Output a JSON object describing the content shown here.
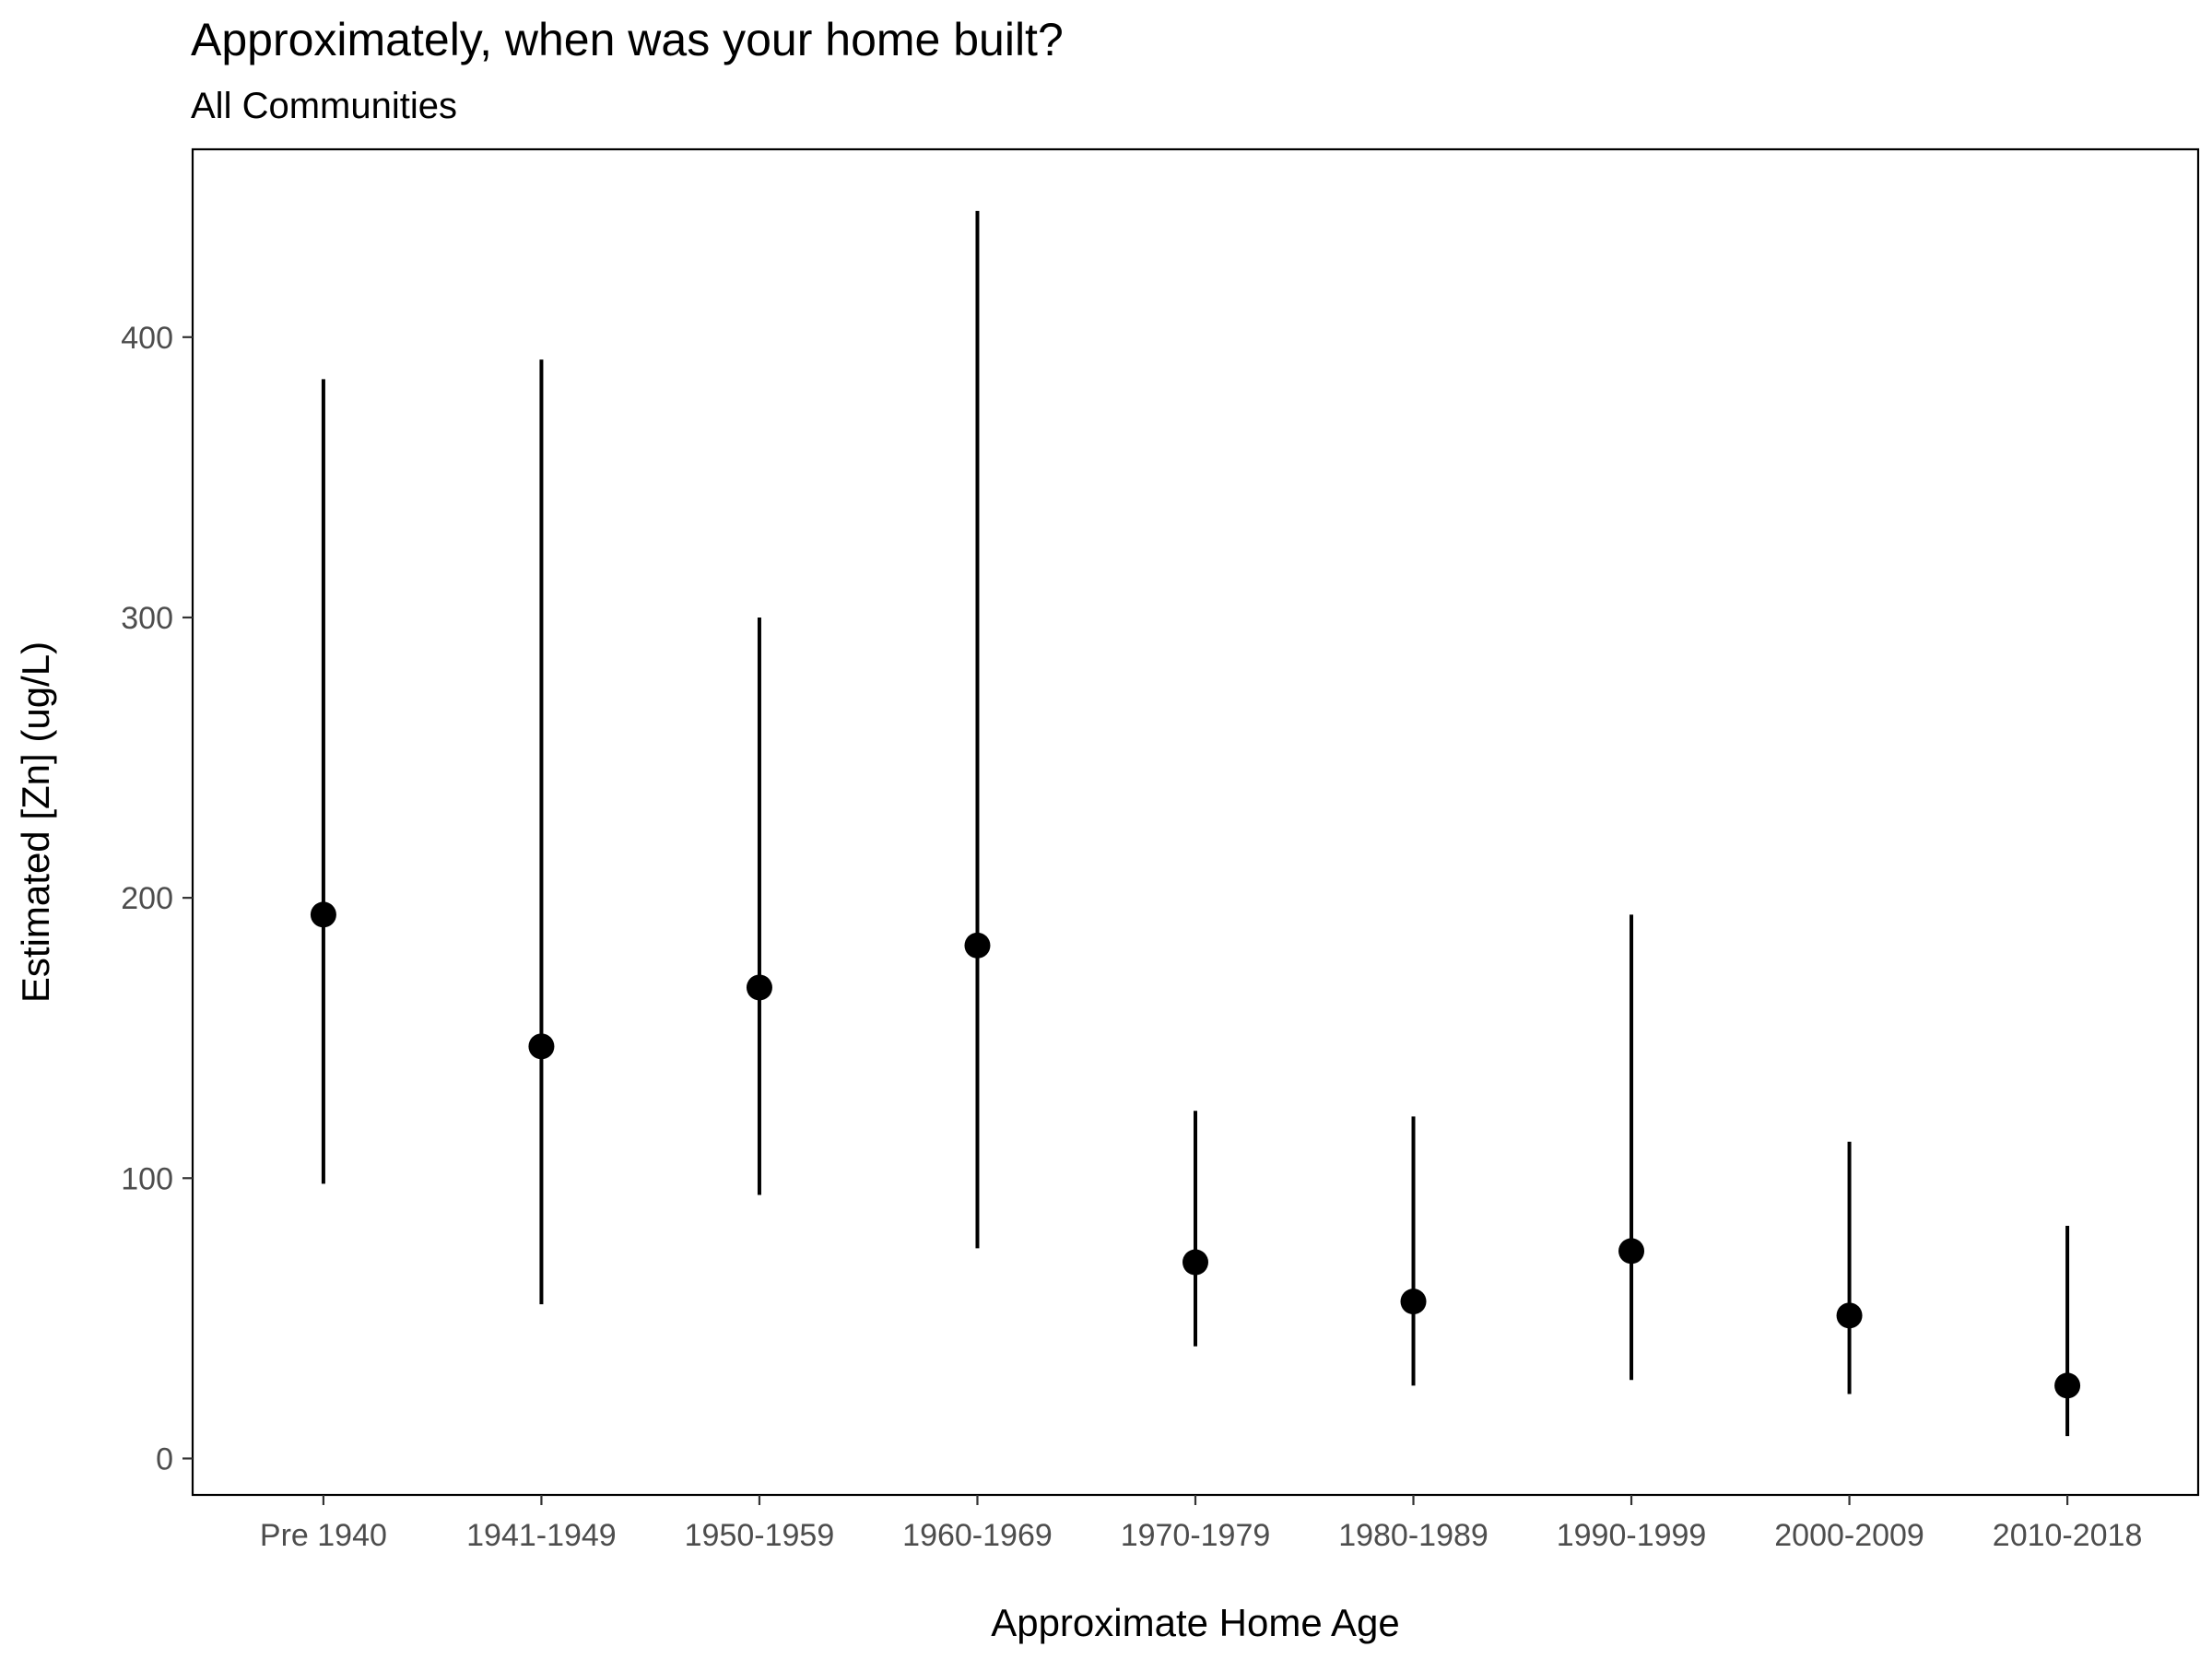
{
  "chart_data": {
    "type": "scatter",
    "title": "Approximately, when was your home built?",
    "subtitle": "All Communities",
    "xlabel": "Approximate Home Age",
    "ylabel": "Estimated [Zn] (ug/L)",
    "categories": [
      "Pre 1940",
      "1941-1949",
      "1950-1959",
      "1960-1969",
      "1970-1979",
      "1980-1989",
      "1990-1999",
      "2000-2009",
      "2010-2018"
    ],
    "series": [
      {
        "values": [
          194,
          147,
          168,
          183,
          70,
          56,
          74,
          51,
          26
        ],
        "lower": [
          98,
          55,
          94,
          75,
          40,
          26,
          28,
          23,
          8
        ],
        "upper": [
          385,
          392,
          300,
          445,
          124,
          122,
          194,
          113,
          83
        ]
      }
    ],
    "yticks": [
      0,
      100,
      200,
      300,
      400
    ],
    "ylim": [
      -13,
      467
    ],
    "grid": false,
    "legend": "none",
    "colors": {
      "point": "#000000",
      "whisker": "#000000",
      "tick_label": "#4d4d4d"
    }
  }
}
